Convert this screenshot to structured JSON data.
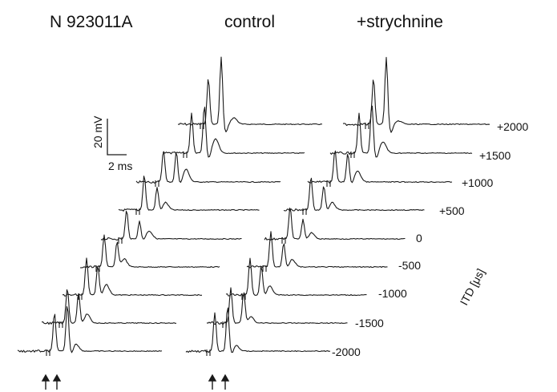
{
  "header": {
    "recording_id": "N 923011A",
    "condition_left": "control",
    "condition_right": "+strychnine"
  },
  "scale_bar": {
    "voltage_label": "20 mV",
    "time_label": "2 ms"
  },
  "itd_axis": {
    "label": "ITD [μs]",
    "values": [
      "+2000",
      "+1500",
      "+1000",
      "+500",
      "0",
      "-500",
      "-1000",
      "-1500",
      "-2000"
    ]
  },
  "stimulus_markers": {
    "symbol": "↑"
  }
}
